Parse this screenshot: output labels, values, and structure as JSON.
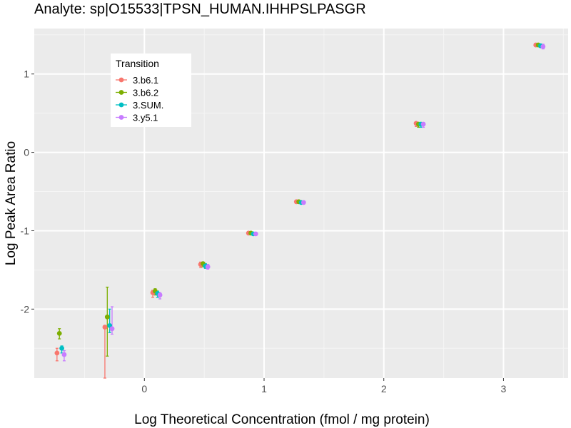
{
  "chart_data": {
    "type": "scatter",
    "title": "Analyte: sp|O15533|TPSN_HUMAN.IHHPSLPASGR",
    "xlabel": "Log Theoretical Concentration (fmol / mg protein)",
    "ylabel": "Log Peak Area Ratio",
    "xlim": [
      -0.92,
      3.54
    ],
    "ylim": [
      -2.88,
      1.58
    ],
    "x_ticks": [
      0,
      1,
      2,
      3
    ],
    "y_ticks": [
      -2,
      -1,
      0,
      1
    ],
    "x_tick_labels": [
      "0",
      "1",
      "2",
      "3"
    ],
    "y_tick_labels": [
      "-2",
      "-1",
      "0",
      "1"
    ],
    "grid": true,
    "legend": {
      "title": "Transition",
      "placement": "top-left"
    },
    "series": [
      {
        "name": "3.b6.1",
        "color": "#F8766D",
        "x_offset": -0.03,
        "points": [
          {
            "x": -0.7,
            "y": -2.56,
            "lo": -2.66,
            "hi": -2.5
          },
          {
            "x": -0.3,
            "y": -2.23,
            "lo": -2.88,
            "hi": -2.21
          },
          {
            "x": 0.1,
            "y": -1.79,
            "lo": -1.85,
            "hi": -1.76
          },
          {
            "x": 0.5,
            "y": -1.43,
            "lo": -1.47,
            "hi": -1.4
          },
          {
            "x": 0.9,
            "y": -1.03,
            "lo": -1.05,
            "hi": -1.02
          },
          {
            "x": 1.3,
            "y": -0.63,
            "lo": -0.65,
            "hi": -0.62
          },
          {
            "x": 2.3,
            "y": 0.37,
            "lo": 0.33,
            "hi": 0.38
          },
          {
            "x": 3.3,
            "y": 1.37,
            "lo": 1.35,
            "hi": 1.39
          }
        ]
      },
      {
        "name": "3.b6.2",
        "color": "#7CAE00",
        "x_offset": -0.01,
        "points": [
          {
            "x": -0.7,
            "y": -2.31,
            "lo": -2.38,
            "hi": -2.25
          },
          {
            "x": -0.3,
            "y": -2.1,
            "lo": -2.6,
            "hi": -1.72
          },
          {
            "x": 0.1,
            "y": -1.77,
            "lo": -1.82,
            "hi": -1.74
          },
          {
            "x": 0.5,
            "y": -1.42,
            "lo": -1.46,
            "hi": -1.4
          },
          {
            "x": 0.9,
            "y": -1.03,
            "lo": -1.05,
            "hi": -1.02
          },
          {
            "x": 1.3,
            "y": -0.63,
            "lo": -0.65,
            "hi": -0.62
          },
          {
            "x": 2.3,
            "y": 0.36,
            "lo": 0.32,
            "hi": 0.38
          },
          {
            "x": 3.3,
            "y": 1.37,
            "lo": 1.35,
            "hi": 1.39
          }
        ]
      },
      {
        "name": "3.SUM.",
        "color": "#00BFC4",
        "x_offset": 0.01,
        "points": [
          {
            "x": -0.7,
            "y": -2.5,
            "lo": -2.56,
            "hi": -2.47
          },
          {
            "x": -0.3,
            "y": -2.21,
            "lo": -2.3,
            "hi": -2.0
          },
          {
            "x": 0.1,
            "y": -1.8,
            "lo": -1.85,
            "hi": -1.77
          },
          {
            "x": 0.5,
            "y": -1.45,
            "lo": -1.48,
            "hi": -1.42
          },
          {
            "x": 0.9,
            "y": -1.04,
            "lo": -1.05,
            "hi": -1.02
          },
          {
            "x": 1.3,
            "y": -0.64,
            "lo": -0.65,
            "hi": -0.62
          },
          {
            "x": 2.3,
            "y": 0.36,
            "lo": 0.32,
            "hi": 0.38
          },
          {
            "x": 3.3,
            "y": 1.36,
            "lo": 1.34,
            "hi": 1.38
          }
        ]
      },
      {
        "name": "3.y5.1",
        "color": "#C77CFF",
        "x_offset": 0.03,
        "points": [
          {
            "x": -0.7,
            "y": -2.58,
            "lo": -2.66,
            "hi": -2.53
          },
          {
            "x": -0.3,
            "y": -2.25,
            "lo": -2.32,
            "hi": -1.97
          },
          {
            "x": 0.1,
            "y": -1.82,
            "lo": -1.87,
            "hi": -1.79
          },
          {
            "x": 0.5,
            "y": -1.46,
            "lo": -1.49,
            "hi": -1.43
          },
          {
            "x": 0.9,
            "y": -1.04,
            "lo": -1.06,
            "hi": -1.02
          },
          {
            "x": 1.3,
            "y": -0.64,
            "lo": -0.66,
            "hi": -0.63
          },
          {
            "x": 2.3,
            "y": 0.36,
            "lo": 0.32,
            "hi": 0.38
          },
          {
            "x": 3.3,
            "y": 1.35,
            "lo": 1.32,
            "hi": 1.38
          }
        ]
      }
    ]
  }
}
